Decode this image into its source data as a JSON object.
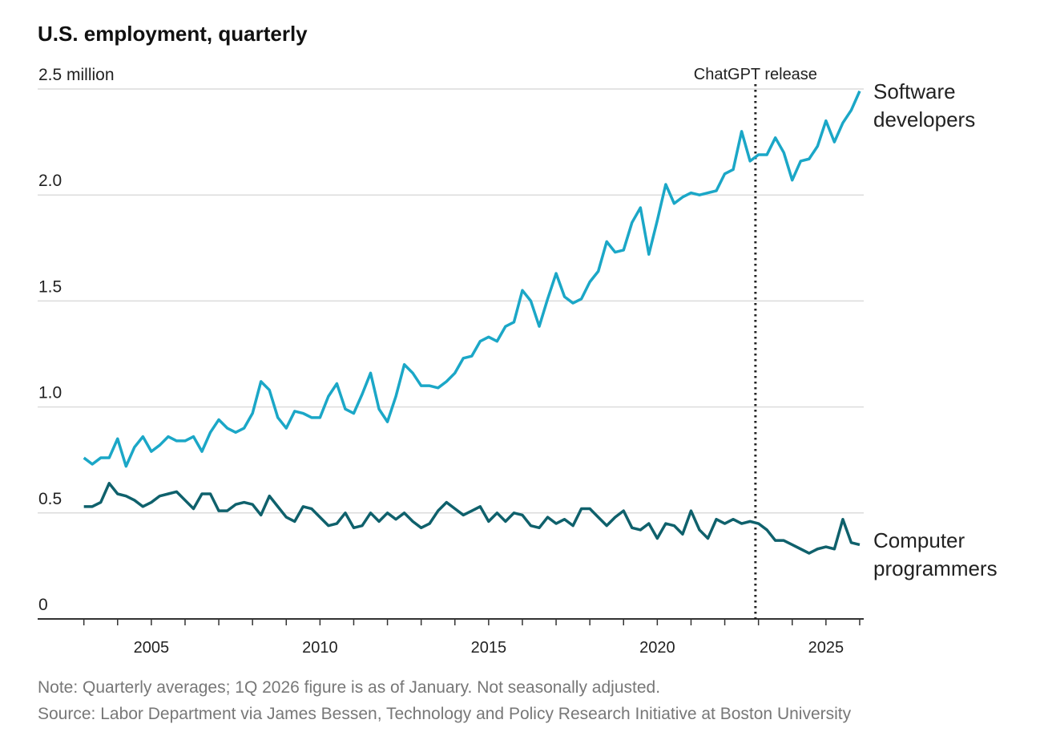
{
  "chart_data": {
    "type": "line",
    "title": "U.S. employment, quarterly",
    "note": "Note: Quarterly averages; 1Q 2026 figure is as of January. Not seasonally adjusted.",
    "source": "Source: Labor Department via James Bessen, Technology and Policy Research Initiative at Boston University",
    "x": [
      2003,
      2003.25,
      2003.5,
      2003.75,
      2004,
      2004.25,
      2004.5,
      2004.75,
      2005,
      2005.25,
      2005.5,
      2005.75,
      2006,
      2006.25,
      2006.5,
      2006.75,
      2007,
      2007.25,
      2007.5,
      2007.75,
      2008,
      2008.25,
      2008.5,
      2008.75,
      2009,
      2009.25,
      2009.5,
      2009.75,
      2010,
      2010.25,
      2010.5,
      2010.75,
      2011,
      2011.25,
      2011.5,
      2011.75,
      2012,
      2012.25,
      2012.5,
      2012.75,
      2013,
      2013.25,
      2013.5,
      2013.75,
      2014,
      2014.25,
      2014.5,
      2014.75,
      2015,
      2015.25,
      2015.5,
      2015.75,
      2016,
      2016.25,
      2016.5,
      2016.75,
      2017,
      2017.25,
      2017.5,
      2017.75,
      2018,
      2018.25,
      2018.5,
      2018.75,
      2019,
      2019.25,
      2019.5,
      2019.75,
      2020,
      2020.25,
      2020.5,
      2020.75,
      2021,
      2021.25,
      2021.5,
      2021.75,
      2022,
      2022.25,
      2022.5,
      2022.75,
      2023,
      2023.25,
      2023.5,
      2023.75,
      2024,
      2024.25,
      2024.5,
      2024.75,
      2025,
      2025.25,
      2025.5,
      2025.75,
      2026
    ],
    "series": [
      {
        "name": "Software developers",
        "color": "#1ba7c7",
        "values": [
          0.76,
          0.73,
          0.76,
          0.76,
          0.85,
          0.72,
          0.81,
          0.86,
          0.79,
          0.82,
          0.86,
          0.84,
          0.84,
          0.86,
          0.79,
          0.88,
          0.94,
          0.9,
          0.88,
          0.9,
          0.97,
          1.12,
          1.08,
          0.95,
          0.9,
          0.98,
          0.97,
          0.95,
          0.95,
          1.05,
          1.11,
          0.99,
          0.97,
          1.06,
          1.16,
          0.99,
          0.93,
          1.05,
          1.2,
          1.16,
          1.1,
          1.1,
          1.09,
          1.12,
          1.16,
          1.23,
          1.24,
          1.31,
          1.33,
          1.31,
          1.38,
          1.4,
          1.55,
          1.5,
          1.38,
          1.51,
          1.63,
          1.52,
          1.49,
          1.51,
          1.59,
          1.64,
          1.78,
          1.73,
          1.74,
          1.87,
          1.94,
          1.72,
          1.88,
          2.05,
          1.96,
          1.99,
          2.01,
          2.0,
          2.01,
          2.02,
          2.1,
          2.12,
          2.3,
          2.16,
          2.19,
          2.19,
          2.27,
          2.2,
          2.07,
          2.16,
          2.17,
          2.23,
          2.35,
          2.25,
          2.34,
          2.4,
          2.49
        ]
      },
      {
        "name": "Computer programmers",
        "color": "#0f616c",
        "values": [
          0.53,
          0.53,
          0.55,
          0.64,
          0.59,
          0.58,
          0.56,
          0.53,
          0.55,
          0.58,
          0.59,
          0.6,
          0.56,
          0.52,
          0.59,
          0.59,
          0.51,
          0.51,
          0.54,
          0.55,
          0.54,
          0.49,
          0.58,
          0.53,
          0.48,
          0.46,
          0.53,
          0.52,
          0.48,
          0.44,
          0.45,
          0.5,
          0.43,
          0.44,
          0.5,
          0.46,
          0.5,
          0.47,
          0.5,
          0.46,
          0.43,
          0.45,
          0.51,
          0.55,
          0.52,
          0.49,
          0.51,
          0.53,
          0.46,
          0.5,
          0.46,
          0.5,
          0.49,
          0.44,
          0.43,
          0.48,
          0.45,
          0.47,
          0.44,
          0.52,
          0.52,
          0.48,
          0.44,
          0.48,
          0.51,
          0.43,
          0.42,
          0.45,
          0.38,
          0.45,
          0.44,
          0.4,
          0.51,
          0.42,
          0.38,
          0.47,
          0.45,
          0.47,
          0.45,
          0.46,
          0.45,
          0.42,
          0.37,
          0.37,
          0.35,
          0.33,
          0.31,
          0.33,
          0.34,
          0.33,
          0.47,
          0.36,
          0.35
        ]
      }
    ],
    "xlim": [
      2001.63,
      2026.12
    ],
    "xticks": [
      2005,
      2010,
      2015,
      2020,
      2025
    ],
    "xminorticks": [
      2003,
      2004,
      2005,
      2006,
      2007,
      2008,
      2009,
      2010,
      2011,
      2012,
      2013,
      2014,
      2015,
      2016,
      2017,
      2018,
      2019,
      2020,
      2021,
      2022,
      2023,
      2024,
      2025,
      2026
    ],
    "ylim": [
      0,
      2.5
    ],
    "yticks": [
      0,
      0.5,
      {
        "value": 1,
        "label": "1.0"
      },
      1.5,
      {
        "value": 2,
        "label": "2.0"
      },
      {
        "value": 2.5,
        "label": "2.5 million"
      }
    ],
    "grid": true,
    "annotations": [
      {
        "text": "ChatGPT release",
        "x": 2022.91
      }
    ]
  }
}
